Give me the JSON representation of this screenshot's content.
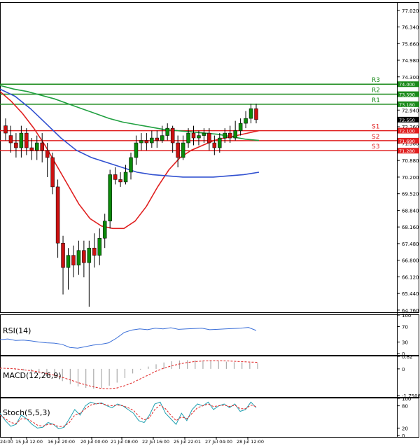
{
  "chart_data": [
    {
      "type": "candlestick",
      "panel": "price",
      "y_ticks": [
        "77.020",
        "76.340",
        "75.660",
        "74.980",
        "74.300",
        "73.620",
        "72.940",
        "72.260",
        "71.580",
        "70.880",
        "70.200",
        "69.520",
        "68.840",
        "68.160",
        "67.480",
        "66.800",
        "66.120",
        "65.440",
        "64.760"
      ],
      "ylim": [
        64.7,
        77.3
      ],
      "x_ticks": [
        "24:00",
        "15 Jul 12:00",
        "16 Jul 20:00",
        "20 Jul 00:00",
        "21 Jul 08:00",
        "22 Jul 16:00",
        "25 Jul 22:01",
        "27 Jul 04:00",
        "28 Jul 12:00"
      ],
      "current_price": "72.550",
      "levels": [
        {
          "name": "R3",
          "value": 74.0,
          "tag": "74.000",
          "color": "#1a8a1a"
        },
        {
          "name": "R2",
          "value": 73.59,
          "tag": "73.590",
          "color": "#1a8a1a"
        },
        {
          "name": "R1",
          "value": 73.18,
          "tag": "73.180",
          "color": "#1a8a1a"
        },
        {
          "name": "S1",
          "value": 72.1,
          "tag": "72.100",
          "color": "#e02020"
        },
        {
          "name": "S2",
          "value": 71.69,
          "tag": "71.690",
          "color": "#e02020"
        },
        {
          "name": "S3",
          "value": 71.28,
          "tag": "71.280",
          "color": "#e02020"
        }
      ],
      "candles": [
        [
          72.3,
          72.0,
          72.6,
          71.7
        ],
        [
          71.9,
          71.6,
          72.3,
          71.2
        ],
        [
          71.6,
          71.4,
          72.0,
          71.0
        ],
        [
          71.4,
          72.0,
          72.3,
          71.0
        ],
        [
          72.0,
          71.4,
          72.2,
          71.1
        ],
        [
          71.4,
          71.3,
          71.8,
          70.9
        ],
        [
          71.3,
          71.6,
          71.9,
          70.9
        ],
        [
          71.6,
          71.3,
          72.0,
          70.8
        ],
        [
          71.3,
          71.0,
          71.6,
          70.2
        ],
        [
          71.0,
          69.8,
          71.2,
          69.5
        ],
        [
          69.8,
          67.5,
          70.1,
          66.9
        ],
        [
          67.5,
          66.5,
          67.8,
          65.4
        ],
        [
          66.5,
          67.0,
          67.3,
          65.6
        ],
        [
          67.0,
          66.6,
          67.4,
          66.1
        ],
        [
          66.6,
          67.2,
          67.6,
          66.2
        ],
        [
          67.2,
          66.7,
          67.6,
          66.1
        ],
        [
          66.7,
          67.3,
          67.6,
          64.9
        ],
        [
          67.3,
          67.0,
          67.9,
          66.5
        ],
        [
          67.0,
          67.7,
          68.1,
          66.6
        ],
        [
          67.7,
          68.4,
          68.7,
          67.3
        ],
        [
          68.4,
          70.3,
          70.5,
          68.1
        ],
        [
          70.3,
          70.1,
          70.6,
          69.9
        ],
        [
          70.1,
          70.0,
          70.4,
          69.8
        ],
        [
          70.0,
          70.4,
          70.7,
          69.9
        ],
        [
          70.4,
          71.0,
          71.2,
          70.1
        ],
        [
          71.0,
          71.6,
          71.9,
          70.7
        ],
        [
          71.6,
          71.7,
          72.0,
          71.3
        ],
        [
          71.7,
          71.6,
          72.0,
          71.3
        ],
        [
          71.6,
          71.8,
          72.1,
          71.4
        ],
        [
          71.8,
          71.7,
          72.1,
          71.4
        ],
        [
          71.7,
          71.9,
          72.3,
          71.6
        ],
        [
          71.9,
          72.2,
          72.4,
          71.7
        ],
        [
          72.2,
          71.6,
          72.3,
          71.2
        ],
        [
          71.6,
          71.0,
          71.9,
          70.6
        ],
        [
          71.0,
          71.6,
          71.9,
          70.9
        ],
        [
          71.6,
          72.0,
          72.2,
          71.4
        ],
        [
          72.0,
          71.8,
          72.3,
          71.5
        ],
        [
          71.8,
          71.9,
          72.1,
          71.5
        ],
        [
          71.9,
          72.0,
          72.2,
          71.6
        ],
        [
          72.0,
          71.6,
          72.2,
          71.3
        ],
        [
          71.6,
          71.4,
          71.9,
          71.1
        ],
        [
          71.4,
          71.8,
          72.0,
          71.2
        ],
        [
          71.8,
          72.0,
          72.2,
          71.6
        ],
        [
          72.0,
          71.8,
          72.3,
          71.6
        ],
        [
          71.8,
          72.1,
          72.5,
          71.7
        ],
        [
          72.1,
          72.4,
          72.6,
          71.9
        ],
        [
          72.4,
          72.6,
          72.9,
          72.2
        ],
        [
          72.6,
          73.0,
          73.2,
          72.4
        ],
        [
          73.0,
          72.55,
          73.2,
          72.4
        ]
      ],
      "indicators": [
        {
          "name": "MA fast",
          "color": "#e02020",
          "values": [
            73.7,
            73.3,
            72.8,
            72.2,
            71.5,
            70.7,
            69.9,
            69.1,
            68.5,
            68.2,
            68.1,
            68.1,
            68.4,
            69.0,
            69.8,
            70.5,
            71.0,
            71.3,
            71.5,
            71.7,
            71.8,
            71.9,
            72.0,
            72.1
          ]
        },
        {
          "name": "MA mid",
          "color": "#3050d0",
          "values": [
            73.8,
            73.5,
            73.0,
            72.4,
            71.8,
            71.3,
            71.0,
            70.8,
            70.6,
            70.4,
            70.3,
            70.25,
            70.2,
            70.2,
            70.2,
            70.25,
            70.3,
            70.4
          ]
        },
        {
          "name": "MA slow",
          "color": "#20a040",
          "values": [
            73.95,
            73.8,
            73.7,
            73.55,
            73.4,
            73.2,
            73.0,
            72.8,
            72.6,
            72.45,
            72.35,
            72.25,
            72.15,
            72.1,
            72.05,
            72.0,
            71.95,
            71.85,
            71.75,
            71.7
          ]
        }
      ]
    },
    {
      "type": "line",
      "panel": "RSI",
      "title": "RSI(14)",
      "y_ticks": [
        "100",
        "70",
        "30",
        "0"
      ],
      "ylim": [
        0,
        100
      ],
      "series": [
        {
          "color": "#3b6fd8",
          "values": [
            36,
            38,
            34,
            35,
            33,
            30,
            28,
            27,
            24,
            16,
            14,
            18,
            22,
            24,
            28,
            40,
            55,
            61,
            64,
            62,
            66,
            64,
            67,
            63,
            64,
            65,
            66,
            62,
            63,
            64,
            65,
            66,
            68,
            60
          ]
        }
      ]
    },
    {
      "type": "bar+line",
      "panel": "MACD",
      "title": "MACD(12,26,9)",
      "y_ticks": [
        "0.82",
        "0",
        "-1.7508"
      ],
      "ylim": [
        -1.75,
        0.82
      ],
      "histogram": [
        0.05,
        0.02,
        -0.05,
        -0.1,
        -0.2,
        -0.3,
        -0.45,
        -0.6,
        -0.8,
        -1.0,
        -1.15,
        -1.25,
        -1.3,
        -1.25,
        -1.1,
        -0.9,
        -0.6,
        -0.3,
        -0.05,
        0.15,
        0.3,
        0.42,
        0.5,
        0.55,
        0.57,
        0.56,
        0.55,
        0.53,
        0.5,
        0.47,
        0.44,
        0.42,
        0.4,
        0.38
      ],
      "signal": [
        0.05,
        0.03,
        0.0,
        -0.05,
        -0.12,
        -0.2,
        -0.3,
        -0.42,
        -0.56,
        -0.72,
        -0.9,
        -1.05,
        -1.18,
        -1.28,
        -1.3,
        -1.25,
        -1.1,
        -0.9,
        -0.65,
        -0.4,
        -0.15,
        0.05,
        0.2,
        0.32,
        0.42,
        0.48,
        0.52,
        0.54,
        0.54,
        0.52,
        0.5,
        0.47,
        0.45,
        0.43
      ]
    },
    {
      "type": "line",
      "panel": "Stochastic",
      "title": "Stoch(5,5,3)",
      "y_ticks": [
        "100",
        "80",
        "20",
        "0"
      ],
      "ylim": [
        0,
        100
      ],
      "series": [
        {
          "color": "#20a0b0",
          "values": [
            60,
            40,
            25,
            30,
            55,
            45,
            30,
            20,
            22,
            35,
            30,
            18,
            22,
            45,
            70,
            55,
            80,
            90,
            85,
            88,
            80,
            75,
            85,
            80,
            70,
            60,
            40,
            35,
            55,
            85,
            90,
            60,
            45,
            30,
            60,
            40,
            70,
            85,
            80,
            90,
            70,
            80,
            85,
            75,
            85,
            65,
            70,
            90,
            75
          ]
        },
        {
          "color": "#e02020",
          "values": [
            55,
            45,
            35,
            32,
            45,
            45,
            38,
            28,
            25,
            30,
            30,
            24,
            25,
            35,
            55,
            60,
            72,
            82,
            86,
            86,
            82,
            80,
            82,
            80,
            75,
            68,
            52,
            42,
            48,
            70,
            82,
            72,
            55,
            40,
            50,
            45,
            60,
            75,
            80,
            85,
            78,
            80,
            82,
            78,
            82,
            72,
            72,
            82,
            78
          ]
        }
      ]
    }
  ]
}
